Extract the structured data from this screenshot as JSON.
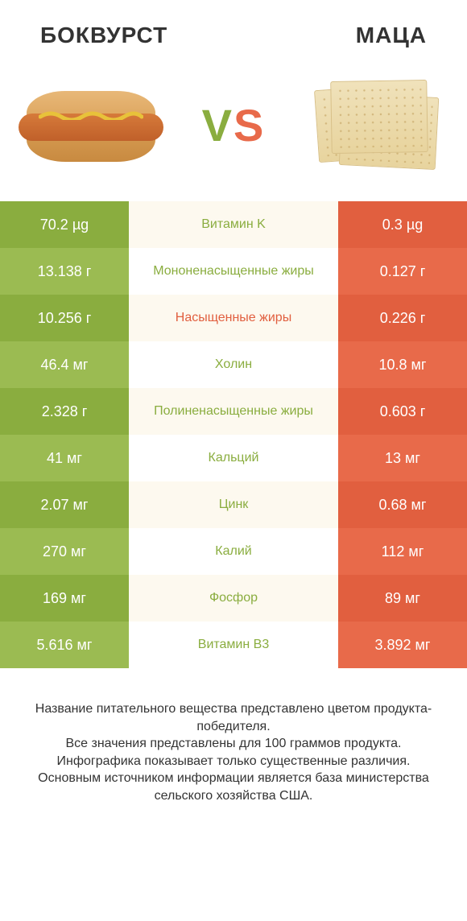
{
  "colors": {
    "green_dark": "#8aad3f",
    "green_light": "#9bbb52",
    "orange_dark": "#e15f3f",
    "orange_light": "#e86a4a",
    "mid_even": "#fdf9ef",
    "mid_odd": "#ffffff",
    "label_green": "#8aad3f",
    "label_orange": "#e15f3f",
    "text_dark": "#333333"
  },
  "header": {
    "left": "БОКВУРСТ",
    "right": "МАЦА"
  },
  "vs": {
    "v": "V",
    "s": "S"
  },
  "rows": [
    {
      "left": "70.2 µg",
      "mid": "Витамин K",
      "right": "0.3 µg",
      "winner": "left"
    },
    {
      "left": "13.138 г",
      "mid": "Мононенасыщенные жиры",
      "right": "0.127 г",
      "winner": "left"
    },
    {
      "left": "10.256 г",
      "mid": "Насыщенные жиры",
      "right": "0.226 г",
      "winner": "right"
    },
    {
      "left": "46.4 мг",
      "mid": "Холин",
      "right": "10.8 мг",
      "winner": "left"
    },
    {
      "left": "2.328 г",
      "mid": "Полиненасыщенные жиры",
      "right": "0.603 г",
      "winner": "left"
    },
    {
      "left": "41 мг",
      "mid": "Кальций",
      "right": "13 мг",
      "winner": "left"
    },
    {
      "left": "2.07 мг",
      "mid": "Цинк",
      "right": "0.68 мг",
      "winner": "left"
    },
    {
      "left": "270 мг",
      "mid": "Калий",
      "right": "112 мг",
      "winner": "left"
    },
    {
      "left": "169 мг",
      "mid": "Фосфор",
      "right": "89 мг",
      "winner": "left"
    },
    {
      "left": "5.616 мг",
      "mid": "Витамин B3",
      "right": "3.892 мг",
      "winner": "left"
    }
  ],
  "footer": "Название питательного вещества представлено цветом продукта-победителя.\nВсе значения представлены для 100 граммов продукта.\nИнфографика показывает только существенные различия.\nОсновным источником информации является база министерства сельского хозяйства США."
}
